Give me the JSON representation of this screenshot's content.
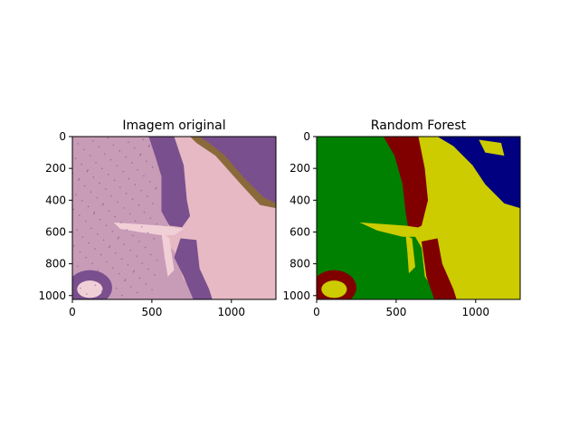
{
  "chart_data": [
    {
      "type": "image",
      "title": "Imagem original",
      "xlim": [
        0,
        1280
      ],
      "ylim": [
        1024,
        0
      ],
      "xticks": [
        0,
        500,
        1000
      ],
      "yticks": [
        0,
        200,
        400,
        600,
        800,
        1000
      ],
      "colors": {
        "background": "#e6b9c4",
        "tissue": "#7a4f8e",
        "tissue_light": "#c89bb7",
        "edge_brown": "#8a6a3a",
        "gap": "#f0d0d6"
      }
    },
    {
      "type": "heatmap",
      "title": "Random Forest",
      "xlim": [
        0,
        1280
      ],
      "ylim": [
        1024,
        0
      ],
      "xticks": [
        0,
        500,
        1000
      ],
      "yticks": [
        0,
        200,
        400,
        600,
        800,
        1000
      ],
      "colors": {
        "green": "#008000",
        "dark_red": "#800000",
        "yellow": "#cccc00",
        "navy": "#000080"
      }
    }
  ]
}
